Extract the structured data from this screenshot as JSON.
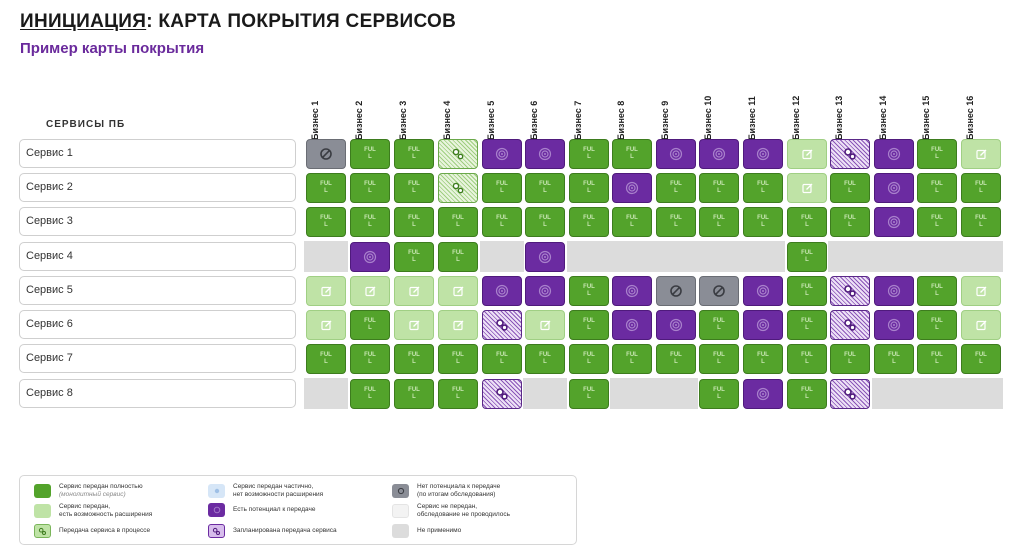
{
  "header": {
    "title_prefix": "ИНИЦИАЦИЯ",
    "title_rest": ": КАРТА ПОКРЫТИЯ СЕРВИСОВ",
    "subtitle": "Пример карты покрытия"
  },
  "services_header": "СЕРВИСЫ ПБ",
  "full_label": "FUL\nL",
  "columns": [
    "Бизнес 1",
    "Бизнес 2",
    "Бизнес 3",
    "Бизнес 4",
    "Бизнес 5",
    "Бизнес 6",
    "Бизнес 7",
    "Бизнес 8",
    "Бизнес 9",
    "Бизнес 10",
    "Бизнес 11",
    "Бизнес 12",
    "Бизнес 13",
    "Бизнес 14",
    "Бизнес 15",
    "Бизнес 16"
  ],
  "rows": [
    {
      "label": "Сервис 1",
      "cells": [
        "nopot",
        "full",
        "full",
        "inproc",
        "potential",
        "potential",
        "full",
        "full",
        "potential",
        "potential",
        "potential",
        "partial",
        "planned",
        "potential",
        "full",
        "partial"
      ]
    },
    {
      "label": "Сервис 2",
      "cells": [
        "full",
        "full",
        "full",
        "inproc",
        "full",
        "full",
        "full",
        "potential",
        "full",
        "full",
        "full",
        "partial",
        "full",
        "potential",
        "full",
        "full"
      ]
    },
    {
      "label": "Сервис 3",
      "cells": [
        "full",
        "full",
        "full",
        "full",
        "full",
        "full",
        "full",
        "full",
        "full",
        "full",
        "full",
        "full",
        "full",
        "potential",
        "full",
        "full"
      ]
    },
    {
      "label": "Сервис 4",
      "cells": [
        "na",
        "potential",
        "full",
        "full",
        "na",
        "potential",
        "na",
        "na",
        "na",
        "na",
        "na",
        "full",
        "na",
        "na",
        "na",
        "na"
      ]
    },
    {
      "label": "Сервис 5",
      "cells": [
        "partial",
        "partial",
        "partial",
        "partial",
        "potential",
        "potential",
        "full",
        "potential",
        "nopot",
        "nopot",
        "potential",
        "full",
        "planned",
        "potential",
        "full",
        "partial"
      ]
    },
    {
      "label": "Сервис 6",
      "cells": [
        "partial",
        "full",
        "partial",
        "partial",
        "planned",
        "partial",
        "full",
        "potential",
        "potential",
        "full",
        "potential",
        "full",
        "planned",
        "potential",
        "full",
        "partial"
      ]
    },
    {
      "label": "Сервис 7",
      "cells": [
        "full",
        "full",
        "full",
        "full",
        "full",
        "full",
        "full",
        "full",
        "full",
        "full",
        "full",
        "full",
        "full",
        "full",
        "full",
        "full"
      ]
    },
    {
      "label": "Сервис 8",
      "cells": [
        "na",
        "full",
        "full",
        "full",
        "planned",
        "na",
        "full",
        "na",
        "na",
        "full",
        "potential",
        "full",
        "planned",
        "na",
        "na",
        "na"
      ]
    }
  ],
  "legend": [
    {
      "type": "full",
      "text": "Сервис передан полностью",
      "note": "(монолитный сервис)"
    },
    {
      "type": "partial",
      "text": "Сервис передан,\nесть возможность расширения",
      "note": ""
    },
    {
      "type": "inproc",
      "text": "Передача сервиса в процессе",
      "note": ""
    },
    {
      "type": "partial_nogrowth",
      "text": "Сервис передан частично,\nнет возможности расширения",
      "note": ""
    },
    {
      "type": "potential",
      "text": "Есть потенциал к передаче",
      "note": ""
    },
    {
      "type": "planned",
      "text": "Запланирована передача сервиса",
      "note": ""
    },
    {
      "type": "nopot",
      "text": "Нет потенциала к передаче\n(по итогам обследования)",
      "note": ""
    },
    {
      "type": "notsurveyed",
      "text": "Сервис не передан,\nобследование не проводилось",
      "note": ""
    },
    {
      "type": "na",
      "text": "Не применимо",
      "note": ""
    }
  ],
  "colors": {
    "full": "#53a32b",
    "partial": "#bfe3a6",
    "potential": "#6b2ba1",
    "nopot": "#8a8d96",
    "na": "#dcdcdc",
    "accent": "#6a2a9c"
  }
}
